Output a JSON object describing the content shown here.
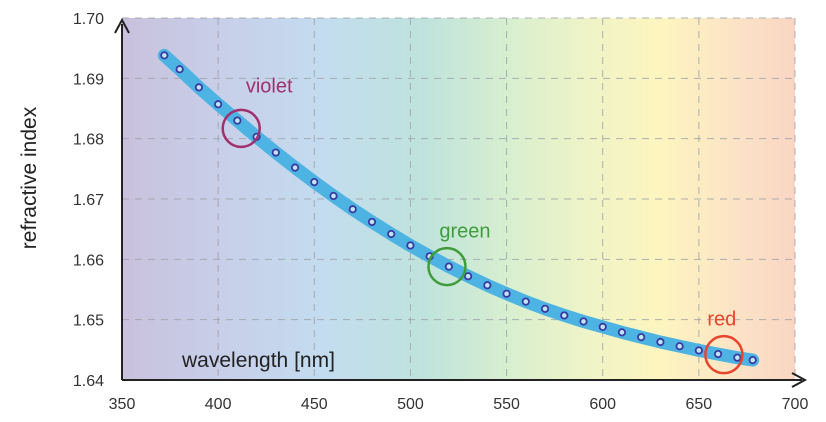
{
  "chart_data": {
    "type": "scatter",
    "xlabel": "wavelength [nm]",
    "ylabel": "refractive index",
    "xlim": [
      350,
      700
    ],
    "ylim": [
      1.64,
      1.7
    ],
    "x_ticks": [
      "350",
      "400",
      "450",
      "500",
      "550",
      "600",
      "650",
      "700"
    ],
    "y_ticks": [
      "1.64",
      "1.65",
      "1.66",
      "1.67",
      "1.68",
      "1.69",
      "1.70"
    ],
    "grid": true,
    "background": "visible spectrum gradient",
    "colors": {
      "curve": "#4cb3e3",
      "marker": "#3a3aa0",
      "violet": "#a0306e",
      "green": "#3f9d3a",
      "red": "#e8442c"
    },
    "series": [
      {
        "x": [
          372,
          380,
          390,
          400,
          410,
          420,
          430,
          440,
          450,
          460,
          470,
          480,
          490,
          500,
          510,
          520,
          530,
          540,
          550,
          560,
          570,
          580,
          590,
          600,
          610,
          620,
          630,
          640,
          650,
          660,
          670,
          678
        ],
        "y": [
          1.6938,
          1.6915,
          1.6885,
          1.6857,
          1.683,
          1.6803,
          1.6777,
          1.6752,
          1.6728,
          1.6705,
          1.6683,
          1.6662,
          1.6642,
          1.6623,
          1.6605,
          1.6588,
          1.6572,
          1.6557,
          1.6543,
          1.653,
          1.6518,
          1.6507,
          1.6497,
          1.6488,
          1.6479,
          1.6471,
          1.6463,
          1.6456,
          1.6449,
          1.6443,
          1.6437,
          1.6433
        ]
      }
    ],
    "annotations": [
      {
        "label": "violet",
        "x": 412,
        "y": 1.6817
      },
      {
        "label": "green",
        "x": 519,
        "y": 1.6588
      },
      {
        "label": "red",
        "x": 663,
        "y": 1.6442
      }
    ]
  }
}
